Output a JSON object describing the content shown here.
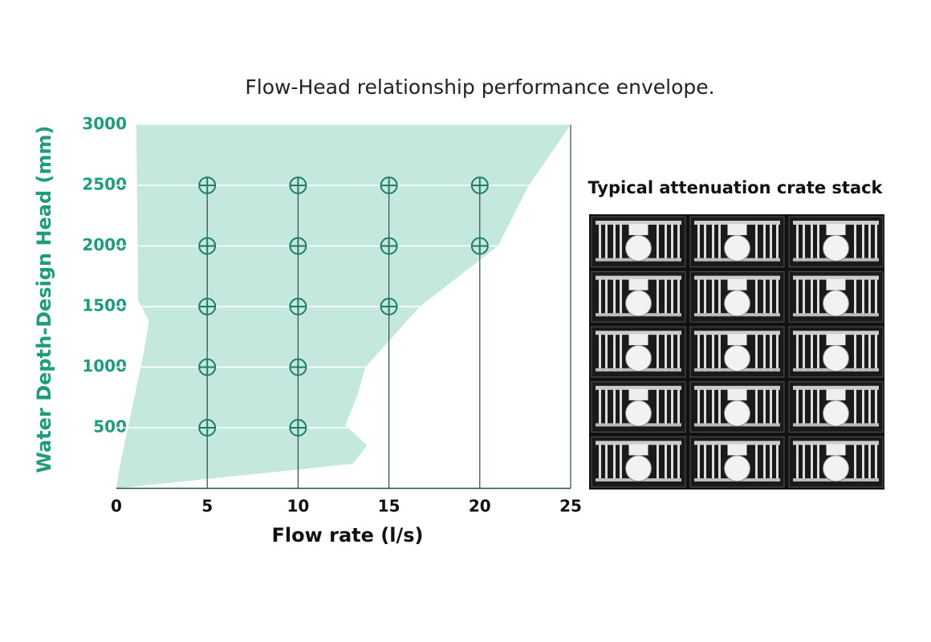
{
  "chart_data": {
    "type": "scatter",
    "title": "Flow-Head relationship performance envelope.",
    "x_label": "Flow rate (l/s)",
    "y_label": "Water Depth-Design Head (mm)",
    "xlim": [
      0,
      25
    ],
    "ylim": [
      0,
      3000
    ],
    "xticks": [
      0,
      5,
      10,
      15,
      20,
      25
    ],
    "yticks": [
      500,
      1000,
      1500,
      2000,
      2500,
      3000
    ],
    "grid": true,
    "envelope": {
      "color": "#c4e7de",
      "x": [
        0,
        13.0,
        13.8,
        12.6,
        13.3,
        13.7,
        16.7,
        21.0,
        22.7,
        25,
        1.1,
        1.2,
        1.8,
        1.5,
        0.2
      ],
      "y": [
        0,
        202,
        354,
        520,
        785,
        1000,
        1500,
        2000,
        2500,
        3000,
        3000,
        1546,
        1381,
        1116,
        189
      ]
    },
    "series": [
      {
        "color": "#1f7c66",
        "x": [
          5,
          5,
          5,
          5,
          5,
          10,
          10,
          10,
          10,
          10,
          15,
          15,
          15,
          20,
          20
        ],
        "values": [
          500,
          1000,
          1500,
          2000,
          2500,
          500,
          1000,
          1500,
          2000,
          2500,
          1500,
          2000,
          2500,
          2000,
          2500
        ]
      }
    ]
  },
  "image_caption": "Typical attenuation crate stack"
}
